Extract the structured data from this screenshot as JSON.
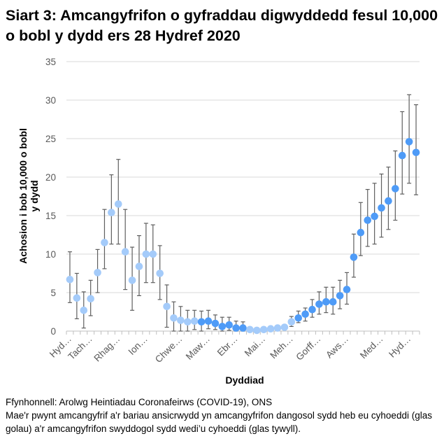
{
  "title": "Siart 3: Amcangyfrifon o gyfraddau digwyddedd fesul 10,000 o bobl y dydd ers 28 Hydref 2020",
  "footnotes": {
    "source": "Ffynhonnell: Arolwg Heintiadau Coronafeirws (COVID-19), ONS",
    "note": "Mae'r pwynt amcangyfrif a'r bariau ansicrwydd yn amcangyfrifon dangosol sydd heb eu cyhoeddi (glas golau) a'r amcangyfrifon swyddogol sydd wedi’u cyhoeddi (glas tywyll)."
  },
  "chart_data": {
    "type": "scatter",
    "xlabel": "Dyddiad",
    "ylabel": "Achosion i bob 10,000 o bobl y dydd",
    "ylim": [
      0,
      35
    ],
    "yticks": [
      0,
      5,
      10,
      15,
      20,
      25,
      30,
      35
    ],
    "grid": true,
    "x_tick_labels": [
      {
        "index": 0,
        "label": "Hyd…"
      },
      {
        "index": 3,
        "label": "Tach…"
      },
      {
        "index": 7,
        "label": "Rhag…"
      },
      {
        "index": 11,
        "label": "Ion…"
      },
      {
        "index": 16,
        "label": "Chwe…"
      },
      {
        "index": 20,
        "label": "Maw…"
      },
      {
        "index": 24,
        "label": "Ebr…"
      },
      {
        "index": 28,
        "label": "Mai…"
      },
      {
        "index": 32,
        "label": "Meh…"
      },
      {
        "index": 36,
        "label": "Gorff…"
      },
      {
        "index": 40,
        "label": "Aws…"
      },
      {
        "index": 45,
        "label": "Med…"
      },
      {
        "index": 49,
        "label": "Hyd…"
      }
    ],
    "colors": {
      "unpublished": "#a4cbfa",
      "published": "#4e9bf7",
      "error_bar": "#5f5f5f",
      "grid": "#d9d9d9"
    },
    "status_legend": {
      "unpublished": "glas golau",
      "published": "glas tywyll"
    },
    "values": [
      6.7,
      4.3,
      2.7,
      4.2,
      7.6,
      11.5,
      15.4,
      16.5,
      10.3,
      6.6,
      8.4,
      10.0,
      10.0,
      7.5,
      3.2,
      1.7,
      1.4,
      1.2,
      1.3,
      1.2,
      1.3,
      1.0,
      0.6,
      0.8,
      0.4,
      0.4,
      0.2,
      0.1,
      0.2,
      0.3,
      0.4,
      0.5,
      1.2,
      1.7,
      2.2,
      2.8,
      3.5,
      3.8,
      3.8,
      4.6,
      5.4,
      9.6,
      12.8,
      14.4,
      14.9,
      16.0,
      16.9,
      18.5,
      22.8,
      24.6,
      23.2
    ],
    "upper": [
      10.3,
      7.5,
      5.1,
      6.6,
      10.6,
      15.8,
      20.3,
      22.3,
      15.8,
      10.9,
      12.4,
      14.0,
      13.8,
      11.1,
      6.0,
      3.8,
      3.2,
      2.7,
      2.7,
      2.6,
      2.7,
      2.1,
      1.8,
      1.8,
      1.3,
      1.2,
      null,
      null,
      null,
      null,
      null,
      null,
      1.9,
      2.6,
      3.0,
      4.1,
      5.1,
      5.7,
      5.7,
      6.6,
      7.6,
      12.6,
      16.7,
      18.4,
      19.2,
      20.4,
      21.3,
      23.4,
      28.5,
      30.7,
      29.4
    ],
    "lower": [
      3.7,
      1.6,
      0.4,
      2.0,
      5.0,
      8.1,
      11.3,
      11.3,
      5.4,
      2.7,
      4.6,
      6.3,
      6.3,
      4.1,
      0.5,
      0,
      0,
      0,
      0.2,
      0,
      0.3,
      0.2,
      0,
      0.1,
      0,
      0,
      null,
      null,
      null,
      null,
      null,
      null,
      0.6,
      1.1,
      1.3,
      1.8,
      2.2,
      2.4,
      2.2,
      2.9,
      3.5,
      7.0,
      9.8,
      11.0,
      11.3,
      12.2,
      13.2,
      14.4,
      17.8,
      19.2,
      17.7
    ],
    "published": [
      0,
      0,
      0,
      0,
      0,
      0,
      0,
      0,
      0,
      0,
      0,
      0,
      0,
      0,
      0,
      0,
      0,
      0,
      0,
      1,
      1,
      1,
      1,
      1,
      1,
      1,
      0,
      0,
      0,
      0,
      0,
      0,
      0,
      1,
      1,
      1,
      1,
      1,
      1,
      1,
      1,
      1,
      1,
      1,
      1,
      1,
      1,
      1,
      1,
      1,
      1
    ]
  }
}
